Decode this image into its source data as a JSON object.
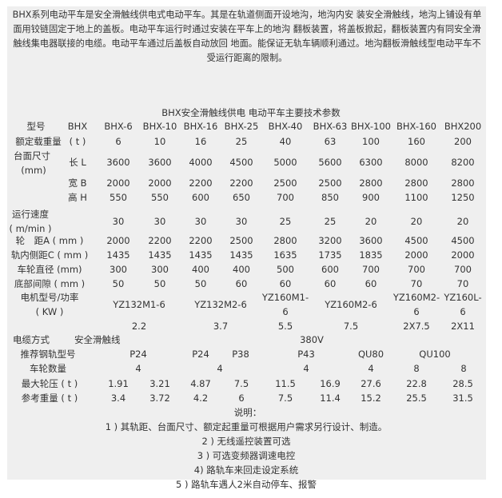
{
  "intro": "BHX系列电动平车是安全滑触线供电式电动平车。其是在轨道侧面开设地沟，地沟内安 装安全滑触线，地沟上铺设有单面用铰链固定于地上的盖板。电动平车运行时通过安装在平车上的地沟 翻板装置，将盖板掀起，翻板装置内有同安全滑触线集电器联接的电缆。电动平车通过后盖板自动放回 地面。能保证无轨车辆顺利通过。地沟翻板滑触线型电动平车不受运行距离的限制。",
  "table_title": "BHX安全滑触线供电 电动平车主要技术参数",
  "header": {
    "label": "型号",
    "unit": "BHX",
    "models": [
      "BHX-6",
      "BHX-10",
      "BHX-16",
      "BHX-25",
      "BHX-40",
      "BHX-63",
      "BHX-100",
      "BHX-160",
      "BHX200"
    ]
  },
  "rows": [
    {
      "label": "额定载重量",
      "unit": "( t )",
      "values": [
        "6",
        "10",
        "16",
        "25",
        "40",
        "63",
        "100",
        "160",
        "200"
      ]
    },
    {
      "label": "台面尺寸",
      "label2": "(mm)",
      "unit": "长 L",
      "values": [
        "3600",
        "3600",
        "4000",
        "4500",
        "5000",
        "5600",
        "6300",
        "8000",
        "8200"
      ]
    },
    {
      "unit": "宽 B",
      "values": [
        "2000",
        "2000",
        "2200",
        "2200",
        "2500",
        "2500",
        "2800",
        "2800",
        "2800"
      ]
    },
    {
      "unit": "高 H",
      "values": [
        "550",
        "550",
        "600",
        "650",
        "700",
        "850",
        "900",
        "1100",
        "1250"
      ]
    },
    {
      "label": "运行速度",
      "label2": "( m/min )",
      "values": [
        "30",
        "30",
        "30",
        "30",
        "25",
        "25",
        "20",
        "20",
        "20"
      ]
    },
    {
      "label": "轮　距A ( mm )",
      "values": [
        "2000",
        "2200",
        "2200",
        "2500",
        "2800",
        "3200",
        "3600",
        "4500",
        "4500"
      ]
    },
    {
      "label": "轨内侧距C ( mm )",
      "values": [
        "1435",
        "1435",
        "1435",
        "1435",
        "1635",
        "1735",
        "1835",
        "2000",
        "2000"
      ]
    },
    {
      "label": "车轮直径 (mm)",
      "values": [
        "300",
        "300",
        "400",
        "400",
        "500",
        "600",
        "700",
        "700",
        "700"
      ]
    },
    {
      "label": "底部间隙 ( mm )",
      "values": [
        "50",
        "50",
        "50",
        "60",
        "60",
        "60",
        "60",
        "70",
        "70"
      ]
    }
  ],
  "motor": {
    "label": "电机型号/功率",
    "label2": "( KW )",
    "models": [
      "YZ132M1-6",
      "YZ132M2-6",
      "YZ160M1-\n6",
      "YZ160M2-6",
      "YZ160M2-\n6",
      "YZ160L-\n6"
    ],
    "powers": [
      "2.2",
      "3.7",
      "5.5",
      "7.5",
      "2X7.5",
      "2X11"
    ]
  },
  "cable": {
    "label": "电缆方式",
    "type": "安全滑触线",
    "voltage": "380V"
  },
  "rail": {
    "label": "推荐钢轨型号",
    "values": [
      "P24",
      "P24",
      "P38",
      "P43",
      "QU80",
      "QU100"
    ]
  },
  "wheel_count": {
    "label": "车轮数量",
    "values": [
      "4",
      "4",
      "4",
      "4",
      "8",
      "8"
    ]
  },
  "max_pressure": {
    "label": "最大轮压 ( t )",
    "values": [
      "1.91",
      "3.21",
      "4.87",
      "7.5",
      "11.5",
      "16.9",
      "27.6",
      "22.8",
      "28.5"
    ]
  },
  "weight": {
    "label": "参考重量 ( t )",
    "values": [
      "3.4",
      "3.72",
      "4.2",
      "6",
      "7.5",
      "11.4",
      "15.2",
      "25.5",
      "31.5"
    ]
  },
  "notes_title": "说明：",
  "notes": [
    "1 ) 其轨距、台面尺寸、额定起重量可根据用户需求另行设计、制造。",
    "2 ) 无线遥控装置可选",
    "3 ) 可选变频器调速电控",
    "4) 路轨车来回走设定系统",
    "5 ) 路轨车遇人2米自动停车、报警"
  ]
}
